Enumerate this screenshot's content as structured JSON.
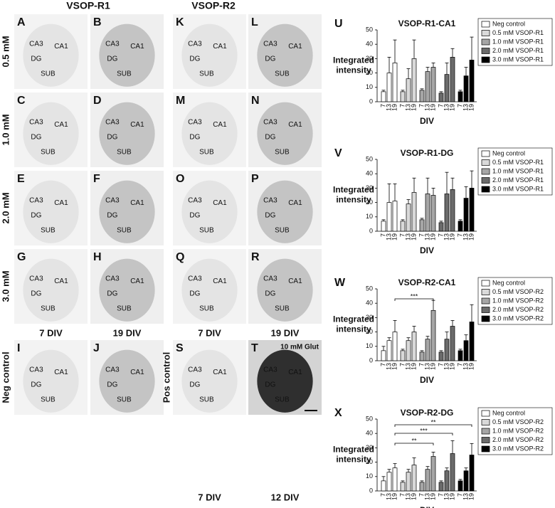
{
  "figure": {
    "column_headers": [
      "VSOP-R1",
      "VSOP-R2"
    ],
    "row_labels": [
      "0.5 mM",
      "1.0 mM",
      "2.0 mM",
      "3.0 mM",
      "Neg control"
    ],
    "pos_label": "Pos control",
    "div_labels": [
      "7 DIV",
      "19 DIV",
      "7 DIV",
      "19 DIV"
    ],
    "pos_div_labels": [
      "7 DIV",
      "12 DIV"
    ],
    "panels": [
      {
        "letter": "A",
        "tone": "light",
        "regions": [
          "CA3",
          "CA1",
          "DG",
          "SUB"
        ]
      },
      {
        "letter": "B",
        "tone": "medium",
        "regions": [
          "CA3",
          "CA1",
          "DG",
          "SUB"
        ]
      },
      {
        "letter": "K",
        "tone": "light",
        "regions": [
          "CA3",
          "CA1",
          "DG",
          "SUB"
        ]
      },
      {
        "letter": "L",
        "tone": "medium",
        "regions": [
          "CA3",
          "CA1",
          "DG",
          "SUB"
        ]
      },
      {
        "letter": "C",
        "tone": "light",
        "regions": [
          "CA3",
          "CA1",
          "DG",
          "SUB"
        ]
      },
      {
        "letter": "D",
        "tone": "medium",
        "regions": [
          "CA3",
          "CA1",
          "DG",
          "SUB"
        ]
      },
      {
        "letter": "M",
        "tone": "light",
        "regions": [
          "CA3",
          "CA1",
          "DG",
          "SUB"
        ]
      },
      {
        "letter": "N",
        "tone": "medium",
        "regions": [
          "CA3",
          "CA1",
          "DG",
          "SUB"
        ]
      },
      {
        "letter": "E",
        "tone": "light",
        "regions": [
          "CA3",
          "CA1",
          "DG",
          "SUB"
        ]
      },
      {
        "letter": "F",
        "tone": "medium",
        "regions": [
          "CA3",
          "CA1",
          "DG",
          "SUB"
        ]
      },
      {
        "letter": "O",
        "tone": "light",
        "regions": [
          "CA3",
          "CA1",
          "DG",
          "SUB"
        ]
      },
      {
        "letter": "P",
        "tone": "medium",
        "regions": [
          "CA3",
          "CA1",
          "DG",
          "SUB"
        ]
      },
      {
        "letter": "G",
        "tone": "light",
        "regions": [
          "CA3",
          "CA1",
          "DG",
          "SUB"
        ]
      },
      {
        "letter": "H",
        "tone": "medium",
        "regions": [
          "CA3",
          "CA1",
          "DG",
          "SUB"
        ]
      },
      {
        "letter": "Q",
        "tone": "light",
        "regions": [
          "CA3",
          "CA1",
          "DG",
          "SUB"
        ]
      },
      {
        "letter": "R",
        "tone": "medium",
        "regions": [
          "CA3",
          "CA1",
          "DG",
          "SUB"
        ]
      },
      {
        "letter": "I",
        "tone": "light",
        "regions": [
          "CA3",
          "CA1",
          "DG",
          "SUB"
        ]
      },
      {
        "letter": "J",
        "tone": "medium",
        "regions": [
          "CA3",
          "CA1",
          "DG",
          "SUB"
        ]
      },
      {
        "letter": "S",
        "tone": "light",
        "regions": [
          "CA3",
          "CA1",
          "DG",
          "SUB"
        ]
      },
      {
        "letter": "T",
        "tone": "dark",
        "regions": [
          "CA3",
          "CA1",
          "DG",
          "SUB"
        ],
        "note": "10 mM Glut"
      }
    ]
  },
  "chart_data": [
    {
      "type": "bar",
      "letter": "U",
      "title": "VSOP-R1-CA1",
      "x_label": "DIV",
      "y_label": [
        "Integrated",
        "intensity"
      ],
      "categories": [
        "7",
        "13",
        "19"
      ],
      "ylim": [
        0,
        50
      ],
      "yticks": [
        0,
        10,
        20,
        30,
        40,
        50
      ],
      "series": [
        {
          "name": "Neg control",
          "color": "#ffffff",
          "values": [
            7,
            20,
            27
          ],
          "errors": [
            1,
            11,
            16
          ]
        },
        {
          "name": "0.5 mM VSOP-R1",
          "color": "#d9d9d9",
          "values": [
            7,
            16,
            30
          ],
          "errors": [
            1,
            7,
            13
          ]
        },
        {
          "name": "1.0 mM VSOP-R1",
          "color": "#a6a6a6",
          "values": [
            8,
            21,
            24
          ],
          "errors": [
            1,
            3,
            3
          ]
        },
        {
          "name": "2.0 mM VSOP-R1",
          "color": "#6b6b6b",
          "values": [
            6,
            19,
            31
          ],
          "errors": [
            1,
            8,
            6
          ]
        },
        {
          "name": "3.0 mM VSOP-R1",
          "color": "#000000",
          "values": [
            7,
            18,
            29
          ],
          "errors": [
            1,
            6,
            16
          ]
        }
      ]
    },
    {
      "type": "bar",
      "letter": "V",
      "title": "VSOP-R1-DG",
      "x_label": "DIV",
      "y_label": [
        "Integrated",
        "intensity"
      ],
      "categories": [
        "7",
        "13",
        "19"
      ],
      "ylim": [
        0,
        50
      ],
      "yticks": [
        0,
        10,
        20,
        30,
        40,
        50
      ],
      "series": [
        {
          "name": "Neg control",
          "color": "#ffffff",
          "values": [
            7,
            20,
            21
          ],
          "errors": [
            1,
            13,
            12
          ]
        },
        {
          "name": "0.5 mM VSOP-R1",
          "color": "#d9d9d9",
          "values": [
            7,
            19,
            27
          ],
          "errors": [
            1,
            3,
            10
          ]
        },
        {
          "name": "1.0 mM VSOP-R1",
          "color": "#a6a6a6",
          "values": [
            8,
            26,
            25
          ],
          "errors": [
            1,
            11,
            5
          ]
        },
        {
          "name": "2.0 mM VSOP-R1",
          "color": "#6b6b6b",
          "values": [
            6,
            26,
            29
          ],
          "errors": [
            1,
            15,
            8
          ]
        },
        {
          "name": "3.0 mM VSOP-R1",
          "color": "#000000",
          "values": [
            7,
            23,
            30
          ],
          "errors": [
            1,
            8,
            12
          ]
        }
      ]
    },
    {
      "type": "bar",
      "letter": "W",
      "title": "VSOP-R2-CA1",
      "x_label": "DIV",
      "y_label": [
        "Integrated",
        "intensity"
      ],
      "categories": [
        "7",
        "13",
        "19"
      ],
      "ylim": [
        0,
        50
      ],
      "yticks": [
        0,
        10,
        20,
        30,
        40,
        50
      ],
      "annotations": [
        "***"
      ],
      "series": [
        {
          "name": "Neg control",
          "color": "#ffffff",
          "values": [
            7,
            14,
            20
          ],
          "errors": [
            3,
            2,
            8
          ]
        },
        {
          "name": "0.5 mM VSOP-R2",
          "color": "#d9d9d9",
          "values": [
            7,
            14,
            20
          ],
          "errors": [
            1,
            2,
            4
          ]
        },
        {
          "name": "1.0 mM VSOP-R2",
          "color": "#a6a6a6",
          "values": [
            6,
            15,
            35
          ],
          "errors": [
            1,
            2,
            7
          ]
        },
        {
          "name": "2.0 mM VSOP-R2",
          "color": "#6b6b6b",
          "values": [
            6,
            15,
            24
          ],
          "errors": [
            1,
            5,
            4
          ]
        },
        {
          "name": "3.0 mM VSOP-R2",
          "color": "#000000",
          "values": [
            7,
            14,
            27
          ],
          "errors": [
            1,
            4,
            12
          ]
        }
      ]
    },
    {
      "type": "bar",
      "letter": "X",
      "title": "VSOP-R2-DG",
      "x_label": "DIV",
      "y_label": [
        "Integrated",
        "intensity"
      ],
      "categories": [
        "7",
        "13",
        "19"
      ],
      "ylim": [
        0,
        50
      ],
      "yticks": [
        0,
        10,
        20,
        30,
        40,
        50
      ],
      "annotations": [
        "**",
        "***",
        "**"
      ],
      "series": [
        {
          "name": "Neg control",
          "color": "#ffffff",
          "values": [
            7,
            13,
            16
          ],
          "errors": [
            3,
            2,
            3
          ]
        },
        {
          "name": "0.5 mM VSOP-R2",
          "color": "#d9d9d9",
          "values": [
            6,
            13,
            18
          ],
          "errors": [
            1,
            2,
            5
          ]
        },
        {
          "name": "1.0 mM VSOP-R2",
          "color": "#a6a6a6",
          "values": [
            6,
            15,
            24
          ],
          "errors": [
            1,
            2,
            3
          ]
        },
        {
          "name": "2.0 mM VSOP-R2",
          "color": "#6b6b6b",
          "values": [
            6,
            14,
            26
          ],
          "errors": [
            1,
            2,
            9
          ]
        },
        {
          "name": "3.0 mM VSOP-R2",
          "color": "#000000",
          "values": [
            7,
            14,
            25
          ],
          "errors": [
            1,
            2,
            8
          ]
        }
      ]
    }
  ]
}
